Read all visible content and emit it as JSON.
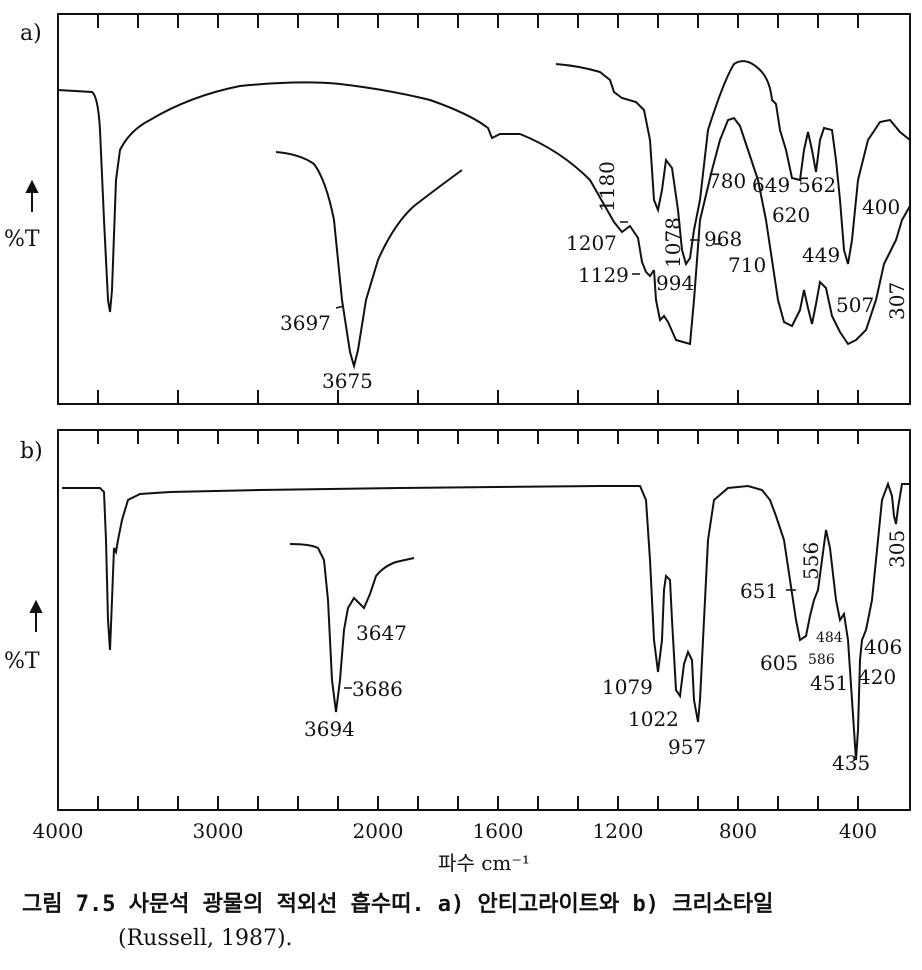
{
  "chart_data": [
    {
      "type": "line",
      "panel_label": "a)",
      "ylabel": "%T",
      "xlabel": "파수 cm⁻¹",
      "x_ticks": [
        "4000",
        "3000",
        "2000",
        "1600",
        "1200",
        "800",
        "400"
      ],
      "annotations": [
        {
          "text": "3697"
        },
        {
          "text": "3675"
        },
        {
          "text": "1207"
        },
        {
          "text": "1180"
        },
        {
          "text": "1129"
        },
        {
          "text": "1078"
        },
        {
          "text": "994"
        },
        {
          "text": "968"
        },
        {
          "text": "780"
        },
        {
          "text": "710"
        },
        {
          "text": "649"
        },
        {
          "text": "620"
        },
        {
          "text": "562"
        },
        {
          "text": "449"
        },
        {
          "text": "400"
        },
        {
          "text": "507"
        },
        {
          "text": "307"
        }
      ]
    },
    {
      "type": "line",
      "panel_label": "b)",
      "ylabel": "%T",
      "xlabel": "파수 cm⁻¹",
      "x_ticks": [
        "4000",
        "3000",
        "2000",
        "1600",
        "1200",
        "800",
        "400"
      ],
      "annotations": [
        {
          "text": "3647"
        },
        {
          "text": "3686"
        },
        {
          "text": "3694"
        },
        {
          "text": "1079"
        },
        {
          "text": "1022"
        },
        {
          "text": "957"
        },
        {
          "text": "651"
        },
        {
          "text": "556"
        },
        {
          "text": "605"
        },
        {
          "text": "484"
        },
        {
          "text": "586"
        },
        {
          "text": "451"
        },
        {
          "text": "406"
        },
        {
          "text": "420"
        },
        {
          "text": "435"
        },
        {
          "text": "305"
        }
      ]
    }
  ],
  "caption": {
    "line1": "그림 7.5  사문석 광물의 적외선 흡수띠. a) 안티고라이트와 b) 크리소타일",
    "line2": "(Russell, 1987)."
  }
}
